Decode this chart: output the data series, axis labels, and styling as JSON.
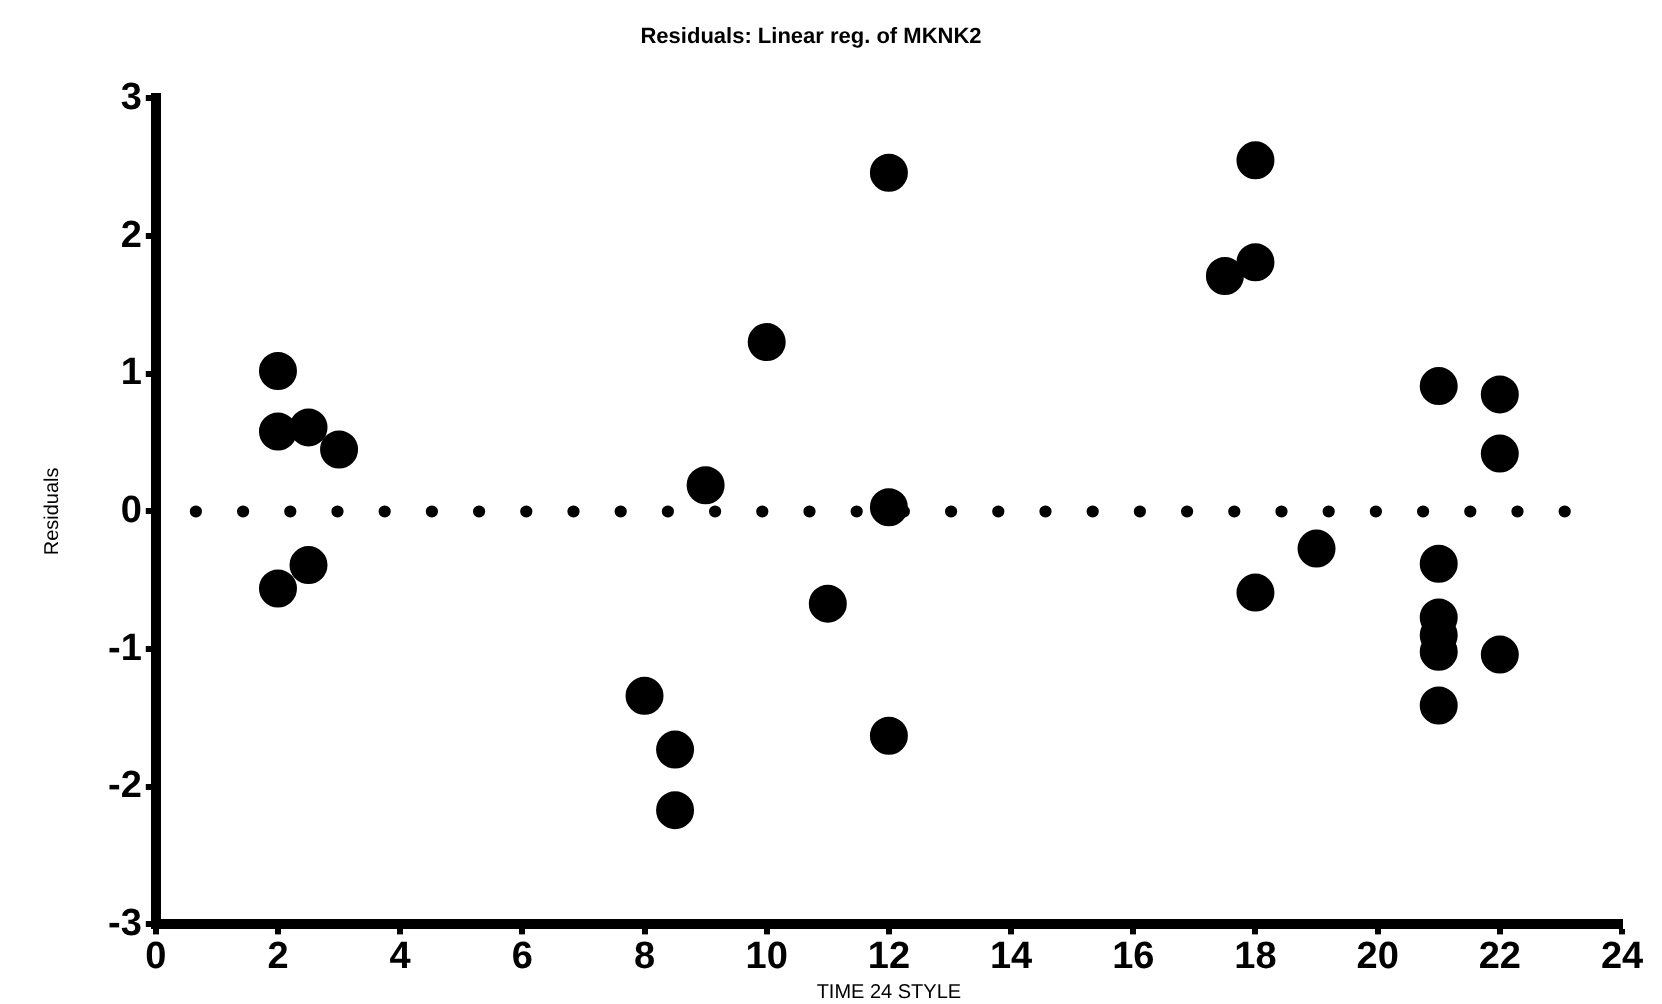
{
  "chart_data": {
    "type": "scatter",
    "title": "Residuals: Linear reg. of MKNK2",
    "xlabel": "TIME 24 STYLE",
    "ylabel": "Residuals",
    "x": [
      2,
      2,
      2.5,
      3,
      2,
      2.5,
      8,
      8.5,
      8.5,
      9,
      10,
      11,
      12,
      12,
      12,
      17.5,
      18,
      18,
      18,
      19,
      21,
      21,
      21,
      21,
      21,
      21,
      22,
      22,
      22
    ],
    "values": [
      1.02,
      0.58,
      0.61,
      0.45,
      -0.56,
      -0.39,
      -1.34,
      -1.73,
      -2.17,
      0.19,
      1.23,
      -0.67,
      2.46,
      0.03,
      -1.63,
      1.71,
      1.81,
      2.55,
      -0.59,
      -0.27,
      0.91,
      -0.38,
      -0.77,
      -0.9,
      -1.02,
      -1.41,
      0.85,
      0.42,
      -1.04
    ],
    "color": "#000000",
    "marker": "circle",
    "xlim": [
      0,
      24
    ],
    "xticks": [
      0,
      2,
      4,
      6,
      8,
      10,
      12,
      14,
      16,
      18,
      20,
      22,
      24
    ],
    "ylim": [
      -3,
      3
    ],
    "yticks": [
      -3,
      -2,
      -1,
      0,
      1,
      2,
      3
    ],
    "ref_lines": [
      {
        "axis": "y",
        "value": 0,
        "color": "#000000",
        "line_style": "dotted"
      }
    ],
    "grid": false,
    "legend": false
  }
}
